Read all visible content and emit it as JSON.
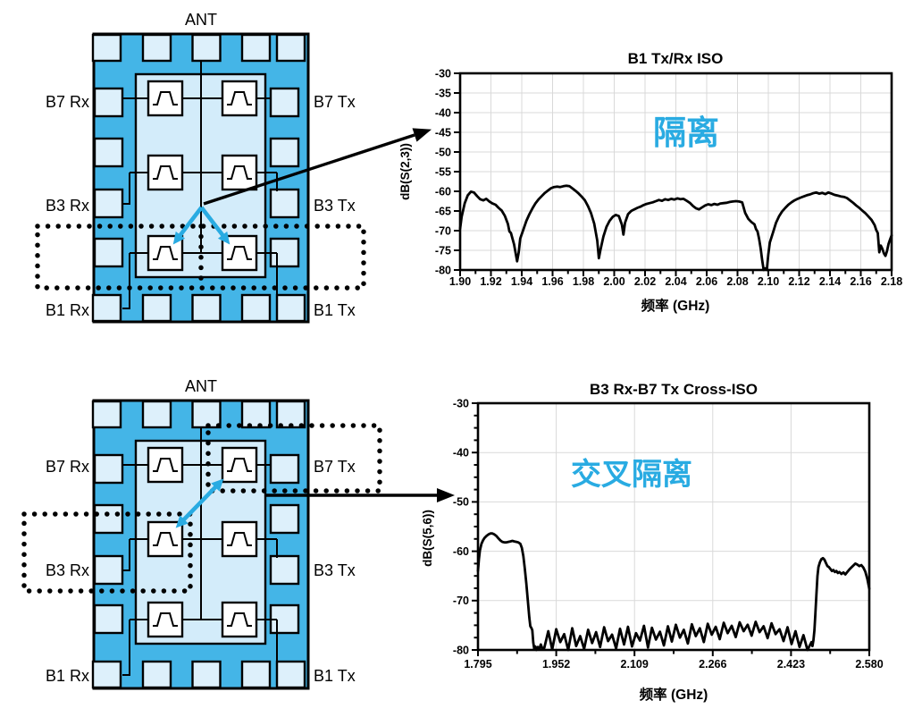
{
  "colors": {
    "accent_blue": "#29abe2",
    "chip_body": "#44b5e7",
    "chip_pad": "#ddf0fb",
    "chip_inner": "#d3ecfa",
    "grid": "#d9d9d9",
    "trace": "#000000"
  },
  "diagram_top": {
    "ant_label": "ANT",
    "pins_left": [
      "B7 Rx",
      "B3 Rx",
      "B1 Rx"
    ],
    "pins_right": [
      "B7 Tx",
      "B3 Tx",
      "B1 Tx"
    ]
  },
  "diagram_bottom": {
    "ant_label": "ANT",
    "pins_left": [
      "B7 Rx",
      "B3 Rx",
      "B1 Rx"
    ],
    "pins_right": [
      "B7 Tx",
      "B3 Tx",
      "B1 Tx"
    ]
  },
  "chart_data": [
    {
      "type": "line",
      "title": "B1 Tx/Rx ISO",
      "xlabel": "频率 (GHz)",
      "ylabel": "dB(S(2,3))",
      "annotation": {
        "text": "隔离",
        "color": "#29abe2"
      },
      "xlim": [
        1.9,
        2.18
      ],
      "ylim": [
        -80,
        -30
      ],
      "x_tick_labels": [
        "1.90",
        "1.92",
        "1.94",
        "1.96",
        "1.98",
        "2.00",
        "2.02",
        "2.04",
        "2.06",
        "2.08",
        "2.10",
        "2.12",
        "2.14",
        "2.16",
        "2.18"
      ],
      "y_tick_labels": [
        "-30",
        "-35",
        "-40",
        "-45",
        "-50",
        "-55",
        "-60",
        "-65",
        "-70",
        "-75",
        "-80"
      ],
      "x_minor_mid": true,
      "grid": true,
      "legend": "none",
      "points": [
        [
          1.9,
          -69.5
        ],
        [
          1.901,
          -66.5
        ],
        [
          1.903,
          -63
        ],
        [
          1.905,
          -61
        ],
        [
          1.907,
          -60.1
        ],
        [
          1.909,
          -60.3
        ],
        [
          1.911,
          -61.2
        ],
        [
          1.913,
          -62
        ],
        [
          1.915,
          -62.3
        ],
        [
          1.917,
          -61.9
        ],
        [
          1.919,
          -62.6
        ],
        [
          1.921,
          -63.1
        ],
        [
          1.923,
          -63.4
        ],
        [
          1.925,
          -64.2
        ],
        [
          1.927,
          -64.9
        ],
        [
          1.929,
          -66.2
        ],
        [
          1.931,
          -68.3
        ],
        [
          1.932,
          -70.2
        ],
        [
          1.933,
          -70.6
        ],
        [
          1.935,
          -73.5
        ],
        [
          1.937,
          -77.8
        ],
        [
          1.938,
          -75.5
        ],
        [
          1.939,
          -72
        ],
        [
          1.941,
          -69.8
        ],
        [
          1.943,
          -67.5
        ],
        [
          1.945,
          -65.8
        ],
        [
          1.947,
          -64.3
        ],
        [
          1.949,
          -63
        ],
        [
          1.951,
          -62
        ],
        [
          1.953,
          -61.2
        ],
        [
          1.955,
          -60.4
        ],
        [
          1.957,
          -59.8
        ],
        [
          1.959,
          -59.2
        ],
        [
          1.961,
          -58.9
        ],
        [
          1.963,
          -58.8
        ],
        [
          1.965,
          -58.9
        ],
        [
          1.967,
          -58.7
        ],
        [
          1.969,
          -58.6
        ],
        [
          1.971,
          -58.7
        ],
        [
          1.973,
          -59.3
        ],
        [
          1.975,
          -59.9
        ],
        [
          1.977,
          -60.6
        ],
        [
          1.979,
          -61.4
        ],
        [
          1.981,
          -62.3
        ],
        [
          1.983,
          -63.8
        ],
        [
          1.985,
          -65.6
        ],
        [
          1.987,
          -68.2
        ],
        [
          1.989,
          -72.5
        ],
        [
          1.99,
          -77
        ],
        [
          1.991,
          -75
        ],
        [
          1.993,
          -71.5
        ],
        [
          1.995,
          -69
        ],
        [
          1.997,
          -67.5
        ],
        [
          1.999,
          -66.5
        ],
        [
          2.001,
          -66
        ],
        [
          2.003,
          -66.3
        ],
        [
          2.005,
          -68.5
        ],
        [
          2.006,
          -71
        ],
        [
          2.007,
          -68
        ],
        [
          2.009,
          -65.8
        ],
        [
          2.011,
          -65
        ],
        [
          2.013,
          -64.6
        ],
        [
          2.015,
          -64.2
        ],
        [
          2.017,
          -63.9
        ],
        [
          2.019,
          -63.5
        ],
        [
          2.021,
          -63.2
        ],
        [
          2.023,
          -63
        ],
        [
          2.025,
          -62.8
        ],
        [
          2.027,
          -62.5
        ],
        [
          2.029,
          -62.2
        ],
        [
          2.031,
          -62.4
        ],
        [
          2.033,
          -62
        ],
        [
          2.035,
          -62.2
        ],
        [
          2.037,
          -61.9
        ],
        [
          2.039,
          -62.1
        ],
        [
          2.041,
          -61.8
        ],
        [
          2.043,
          -62
        ],
        [
          2.045,
          -61.9
        ],
        [
          2.047,
          -62.4
        ],
        [
          2.049,
          -62.9
        ],
        [
          2.051,
          -63.7
        ],
        [
          2.053,
          -64.3
        ],
        [
          2.055,
          -64.6
        ],
        [
          2.057,
          -64.1
        ],
        [
          2.059,
          -63.6
        ],
        [
          2.061,
          -63.3
        ],
        [
          2.063,
          -63.5
        ],
        [
          2.065,
          -63.2
        ],
        [
          2.067,
          -63.4
        ],
        [
          2.069,
          -63.1
        ],
        [
          2.071,
          -63
        ],
        [
          2.073,
          -62.9
        ],
        [
          2.075,
          -62.7
        ],
        [
          2.077,
          -62.6
        ],
        [
          2.079,
          -62.5
        ],
        [
          2.081,
          -62.6
        ],
        [
          2.083,
          -62.8
        ],
        [
          2.085,
          -65.5
        ],
        [
          2.087,
          -67
        ],
        [
          2.089,
          -67.8
        ],
        [
          2.091,
          -68.4
        ],
        [
          2.092,
          -69.6
        ],
        [
          2.093,
          -70.2
        ],
        [
          2.094,
          -72
        ],
        [
          2.095,
          -74.5
        ],
        [
          2.096,
          -77.5
        ],
        [
          2.097,
          -80
        ],
        [
          2.098,
          -79.6
        ],
        [
          2.099,
          -80
        ],
        [
          2.1,
          -76
        ],
        [
          2.101,
          -73
        ],
        [
          2.103,
          -70.5
        ],
        [
          2.105,
          -68
        ],
        [
          2.107,
          -66.3
        ],
        [
          2.109,
          -65.1
        ],
        [
          2.111,
          -64.2
        ],
        [
          2.113,
          -63.4
        ],
        [
          2.115,
          -62.8
        ],
        [
          2.117,
          -62.3
        ],
        [
          2.119,
          -61.9
        ],
        [
          2.121,
          -61.6
        ],
        [
          2.123,
          -61.3
        ],
        [
          2.125,
          -61
        ],
        [
          2.127,
          -60.8
        ],
        [
          2.129,
          -60.5
        ],
        [
          2.131,
          -60.3
        ],
        [
          2.133,
          -60.6
        ],
        [
          2.135,
          -60.4
        ],
        [
          2.137,
          -60.7
        ],
        [
          2.139,
          -60.3
        ],
        [
          2.141,
          -60.6
        ],
        [
          2.143,
          -60.9
        ],
        [
          2.145,
          -61.1
        ],
        [
          2.147,
          -61.3
        ],
        [
          2.149,
          -61.4
        ],
        [
          2.151,
          -61.7
        ],
        [
          2.153,
          -62.3
        ],
        [
          2.155,
          -62.9
        ],
        [
          2.157,
          -63.6
        ],
        [
          2.159,
          -64.2
        ],
        [
          2.161,
          -64.9
        ],
        [
          2.163,
          -65.6
        ],
        [
          2.165,
          -66.4
        ],
        [
          2.167,
          -67.3
        ],
        [
          2.169,
          -68.6
        ],
        [
          2.17,
          -69.8
        ],
        [
          2.171,
          -70.6
        ],
        [
          2.172,
          -75.5
        ],
        [
          2.173,
          -73.8
        ],
        [
          2.174,
          -74.6
        ],
        [
          2.175,
          -75.8
        ],
        [
          2.176,
          -76.4
        ],
        [
          2.177,
          -75.2
        ],
        [
          2.178,
          -73.4
        ],
        [
          2.179,
          -72.2
        ],
        [
          2.18,
          -71.2
        ]
      ]
    },
    {
      "type": "line",
      "title": "B3 Rx-B7 Tx Cross-ISO",
      "xlabel": "频率 (GHz)",
      "ylabel": "dB(S(5,6))",
      "annotation": {
        "text": "交叉隔离",
        "color": "#29abe2"
      },
      "xlim": [
        1.795,
        2.58
      ],
      "ylim": [
        -80,
        -30
      ],
      "x_tick_labels": [
        "1.795",
        "1.952",
        "2.109",
        "2.266",
        "2.423",
        "2.580"
      ],
      "y_tick_labels": [
        "-30",
        "-40",
        "-50",
        "-60",
        "-70",
        "-80"
      ],
      "x_minor_mid": true,
      "y_minor_step": 2.5,
      "grid": true,
      "legend": "none",
      "points_head": [
        [
          1.795,
          -64
        ],
        [
          1.797,
          -61.5
        ],
        [
          1.799,
          -59.8
        ],
        [
          1.802,
          -58.5
        ],
        [
          1.805,
          -57.8
        ],
        [
          1.808,
          -57.3
        ],
        [
          1.812,
          -56.9
        ],
        [
          1.816,
          -56.6
        ],
        [
          1.82,
          -56.4
        ],
        [
          1.824,
          -56.4
        ],
        [
          1.828,
          -56.6
        ],
        [
          1.832,
          -56.9
        ],
        [
          1.836,
          -57.4
        ],
        [
          1.84,
          -57.8
        ],
        [
          1.844,
          -58.1
        ],
        [
          1.848,
          -58.2
        ],
        [
          1.852,
          -58.2
        ],
        [
          1.856,
          -58.1
        ],
        [
          1.86,
          -58
        ],
        [
          1.864,
          -57.9
        ],
        [
          1.868,
          -58
        ],
        [
          1.872,
          -58.1
        ],
        [
          1.876,
          -58.2
        ],
        [
          1.88,
          -58.5
        ],
        [
          1.883,
          -59.3
        ],
        [
          1.886,
          -61
        ],
        [
          1.889,
          -63.5
        ],
        [
          1.892,
          -66.5
        ],
        [
          1.895,
          -70
        ],
        [
          1.898,
          -73.5
        ],
        [
          1.9,
          -75.2
        ],
        [
          1.902,
          -75.5
        ],
        [
          1.904,
          -76
        ],
        [
          1.906,
          -78.5
        ],
        [
          1.908,
          -79.8
        ],
        [
          1.91,
          -79.3
        ],
        [
          1.912,
          -80
        ],
        [
          1.915,
          -79.4
        ],
        [
          1.918,
          -79.9
        ],
        [
          1.921,
          -78.9
        ],
        [
          1.924,
          -79.7
        ]
      ],
      "floor": {
        "x_start": 1.928,
        "x_step": 0.008,
        "y": [
          -79.6,
          -76.2,
          -79.9,
          -75.8,
          -78.4,
          -76.8,
          -80,
          -75.6,
          -79.2,
          -77.2,
          -79.8,
          -75.9,
          -78.6,
          -76.4,
          -79.4,
          -75.4,
          -78.2,
          -76.9,
          -79.7,
          -75.7,
          -78.9,
          -75.3,
          -79.3,
          -76.6,
          -78.1,
          -75.1,
          -79.5,
          -75.5,
          -77.9,
          -76.3,
          -79.1,
          -75.2,
          -78.3,
          -74.9,
          -77.5,
          -75.9,
          -78.7,
          -74.8,
          -77.2,
          -75.6,
          -78.4,
          -74.7,
          -76.9,
          -75.3,
          -77.8,
          -74.5,
          -76.6,
          -75.1,
          -77.4,
          -74.4,
          -76.2,
          -74.9,
          -77.1,
          -74.3,
          -76.4,
          -75.2,
          -77.6,
          -74.6,
          -76.8,
          -75.8,
          -78.2,
          -75.4,
          -78.8,
          -76.2,
          -79.4,
          -77,
          -80,
          -78.4
        ]
      },
      "points_tail": [
        [
          2.466,
          -79.2
        ],
        [
          2.468,
          -78
        ],
        [
          2.47,
          -76
        ],
        [
          2.472,
          -72.5
        ],
        [
          2.474,
          -68.5
        ],
        [
          2.476,
          -65
        ],
        [
          2.478,
          -63.2
        ],
        [
          2.481,
          -62.2
        ],
        [
          2.484,
          -61.6
        ],
        [
          2.487,
          -61.4
        ],
        [
          2.49,
          -61.7
        ],
        [
          2.493,
          -62.4
        ],
        [
          2.496,
          -63
        ],
        [
          2.499,
          -63.2
        ],
        [
          2.502,
          -63.6
        ],
        [
          2.505,
          -64
        ],
        [
          2.508,
          -63.8
        ],
        [
          2.511,
          -64.2
        ],
        [
          2.514,
          -64
        ],
        [
          2.517,
          -64.4
        ],
        [
          2.52,
          -64.2
        ],
        [
          2.524,
          -64.6
        ],
        [
          2.528,
          -64.3
        ],
        [
          2.532,
          -64.7
        ],
        [
          2.536,
          -64.2
        ],
        [
          2.54,
          -63.7
        ],
        [
          2.544,
          -63.3
        ],
        [
          2.548,
          -62.9
        ],
        [
          2.552,
          -62.5
        ],
        [
          2.556,
          -62.7
        ],
        [
          2.56,
          -63
        ],
        [
          2.564,
          -62.8
        ],
        [
          2.568,
          -63.3
        ],
        [
          2.572,
          -64.1
        ],
        [
          2.576,
          -65.6
        ],
        [
          2.58,
          -67.6
        ]
      ]
    }
  ]
}
